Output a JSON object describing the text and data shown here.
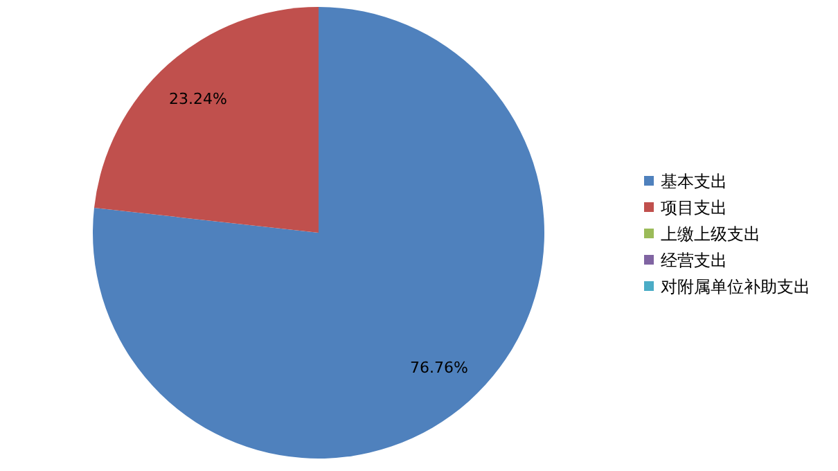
{
  "chart_data": {
    "type": "pie",
    "categories": [
      "基本支出",
      "项目支出",
      "上缴上级支出",
      "经营支出",
      "对附属单位补助支出"
    ],
    "values": [
      76.76,
      23.24,
      0,
      0,
      0
    ],
    "colors": [
      "#4f81bd",
      "#c0504d",
      "#9bbb59",
      "#8064a2",
      "#4bacc6"
    ],
    "value_labels": [
      "76.76%",
      "23.24%",
      null,
      null,
      null
    ],
    "legend": "right"
  }
}
